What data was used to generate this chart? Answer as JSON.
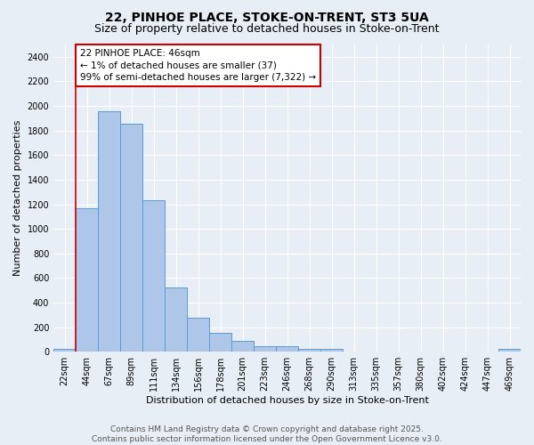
{
  "title1": "22, PINHOE PLACE, STOKE-ON-TRENT, ST3 5UA",
  "title2": "Size of property relative to detached houses in Stoke-on-Trent",
  "xlabel": "Distribution of detached houses by size in Stoke-on-Trent",
  "ylabel": "Number of detached properties",
  "bar_labels": [
    "22sqm",
    "44sqm",
    "67sqm",
    "89sqm",
    "111sqm",
    "134sqm",
    "156sqm",
    "178sqm",
    "201sqm",
    "223sqm",
    "246sqm",
    "268sqm",
    "290sqm",
    "313sqm",
    "335sqm",
    "357sqm",
    "380sqm",
    "402sqm",
    "424sqm",
    "447sqm",
    "469sqm"
  ],
  "bar_values": [
    25,
    1165,
    1960,
    1855,
    1230,
    520,
    275,
    150,
    90,
    45,
    45,
    20,
    20,
    5,
    5,
    5,
    5,
    5,
    5,
    5,
    20
  ],
  "bar_color": "#aec6e8",
  "bar_edge_color": "#5b9bd5",
  "vline_color": "#cc0000",
  "annotation_text": "22 PINHOE PLACE: 46sqm\n← 1% of detached houses are smaller (37)\n99% of semi-detached houses are larger (7,322) →",
  "annotation_box_color": "#ffffff",
  "annotation_box_edge": "#cc0000",
  "ylim": [
    0,
    2500
  ],
  "yticks": [
    0,
    200,
    400,
    600,
    800,
    1000,
    1200,
    1400,
    1600,
    1800,
    2000,
    2200,
    2400
  ],
  "bg_color": "#e8eef5",
  "footer_text": "Contains HM Land Registry data © Crown copyright and database right 2025.\nContains public sector information licensed under the Open Government Licence v3.0.",
  "title1_fontsize": 10,
  "title2_fontsize": 9,
  "xlabel_fontsize": 8,
  "ylabel_fontsize": 8,
  "tick_fontsize": 7,
  "footer_fontsize": 6.5,
  "annotation_fontsize": 7.5
}
